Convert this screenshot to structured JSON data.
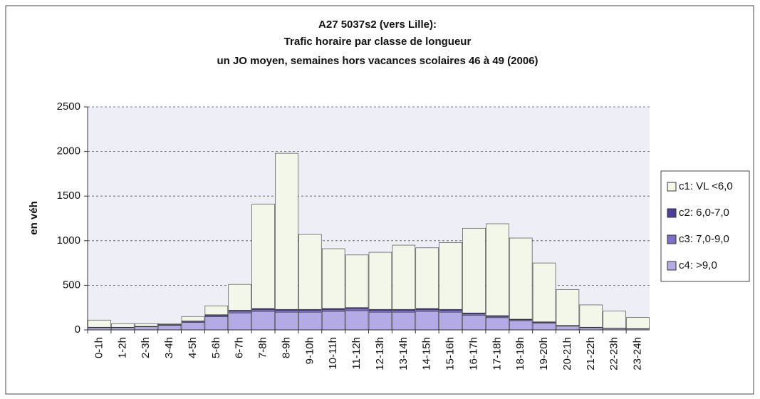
{
  "chart_data": {
    "type": "stacked-bar",
    "title": "A27 5037s2 (vers Lille):",
    "subtitle": [
      "Trafic horaire par classe de longueur",
      "un JO moyen,  semaines hors vacances scolaires 46 à 49 (2006)"
    ],
    "y_label": "en véh",
    "categories": [
      "0-1h",
      "1-2h",
      "2-3h",
      "3-4h",
      "4-5h",
      "5-6h",
      "6-7h",
      "7-8h",
      "8-9h",
      "9-10h",
      "10-11h",
      "11-12h",
      "12-13h",
      "13-14h",
      "14-15h",
      "15-16h",
      "16-17h",
      "17-18h",
      "18-19h",
      "19-20h",
      "20-21h",
      "21-22h",
      "22-23h",
      "23-24h"
    ],
    "series": [
      {
        "name": "c4: >9,0",
        "color": "#b4aae6",
        "values": [
          25,
          25,
          34,
          52,
          85,
          147,
          190,
          208,
          198,
          198,
          208,
          216,
          198,
          198,
          208,
          198,
          165,
          137,
          104,
          77,
          42,
          25,
          17,
          12
        ]
      },
      {
        "name": "c3: 7,0-9,0",
        "color": "#7d70c8",
        "values": [
          3,
          3,
          4,
          5,
          10,
          15,
          20,
          20,
          20,
          20,
          20,
          22,
          20,
          20,
          20,
          20,
          15,
          15,
          10,
          8,
          5,
          3,
          2,
          2
        ]
      },
      {
        "name": "c2: 6,0-7,0",
        "color": "#4b3f98",
        "values": [
          2,
          2,
          2,
          3,
          5,
          8,
          10,
          12,
          12,
          12,
          12,
          12,
          12,
          12,
          12,
          12,
          10,
          8,
          6,
          5,
          3,
          2,
          1,
          1
        ]
      },
      {
        "name": "c1: VL  <6,0",
        "color": "#f3f7ea",
        "values": [
          80,
          40,
          30,
          10,
          50,
          100,
          290,
          1170,
          1750,
          840,
          670,
          590,
          640,
          720,
          680,
          750,
          950,
          1030,
          910,
          660,
          400,
          250,
          190,
          125
        ]
      }
    ],
    "legend_order": [
      3,
      2,
      1,
      0
    ],
    "ylim": [
      0,
      2500
    ],
    "yticks": [
      0,
      500,
      1000,
      1500,
      2000,
      2500
    ],
    "grid": true
  }
}
